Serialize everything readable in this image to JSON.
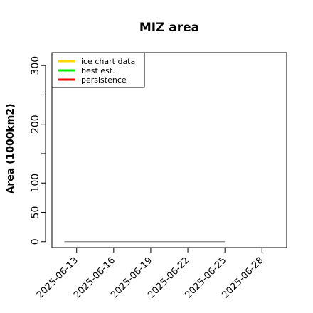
{
  "chart_data": {
    "type": "line",
    "title": "MIZ area",
    "xlabel": "",
    "ylabel": "Area (1000km2)",
    "x_ticks": [
      "2025-06-13",
      "2025-06-16",
      "2025-06-19",
      "2025-06-22",
      "2025-06-25",
      "2025-06-28"
    ],
    "xlim": [
      "2025-06-11",
      "2025-06-30"
    ],
    "y_ticks": [
      0,
      50,
      100,
      200,
      300
    ],
    "y_minor_ticks": [
      150,
      250
    ],
    "ylim": [
      -10,
      322
    ],
    "legend": {
      "placement": "top-left"
    },
    "series": [
      {
        "name": "ice chart data",
        "color": "#ffd700",
        "x": [],
        "y": []
      },
      {
        "name": "best est.",
        "color": "#00ee00",
        "x": [],
        "y": []
      },
      {
        "name": "persistence",
        "color": "#ff0000",
        "x": [],
        "y": []
      },
      {
        "name": "",
        "color": "#808080",
        "x": [
          "2025-06-12",
          "2025-06-25"
        ],
        "y": [
          0,
          0
        ]
      }
    ],
    "grid": false
  }
}
